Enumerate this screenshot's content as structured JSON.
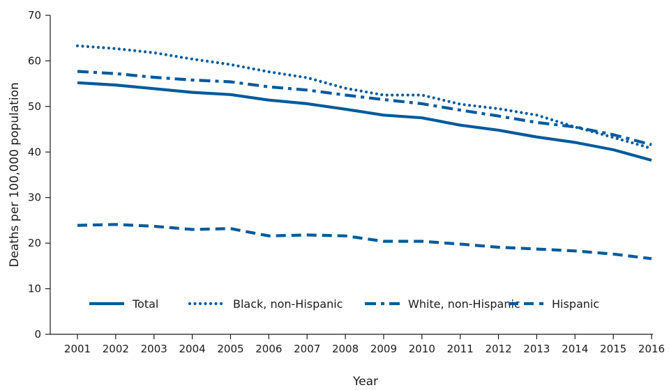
{
  "chart_data": {
    "type": "line",
    "title": "",
    "xlabel": "Year",
    "ylabel": "Deaths per 100,000 population",
    "categories": [
      "2001",
      "2002",
      "2003",
      "2004",
      "2005",
      "2006",
      "2007",
      "2008",
      "2009",
      "2010",
      "2011",
      "2012",
      "2013",
      "2014",
      "2015",
      "2016"
    ],
    "ylim": [
      0,
      70
    ],
    "yticks": [
      0,
      10,
      20,
      30,
      40,
      50,
      60,
      70
    ],
    "grid": false,
    "legend_position": "bottom-inside",
    "color": "#005a9c",
    "series": [
      {
        "name": "Total",
        "dash": "solid",
        "values": [
          55.2,
          54.7,
          53.9,
          53.1,
          52.6,
          51.4,
          50.6,
          49.4,
          48.1,
          47.5,
          45.9,
          44.8,
          43.3,
          42.1,
          40.5,
          38.2
        ]
      },
      {
        "name": "Black, non-Hispanic",
        "dash": "dotted",
        "values": [
          63.3,
          62.7,
          61.8,
          60.4,
          59.2,
          57.6,
          56.3,
          54.0,
          52.5,
          52.5,
          50.5,
          49.5,
          48.1,
          45.5,
          43.2,
          40.8
        ]
      },
      {
        "name": "White, non-Hispanic",
        "dash": "dashdot",
        "values": [
          57.7,
          57.2,
          56.4,
          55.8,
          55.4,
          54.3,
          53.6,
          52.5,
          51.5,
          50.6,
          49.2,
          47.9,
          46.5,
          45.5,
          43.8,
          41.6
        ]
      },
      {
        "name": "Hispanic",
        "dash": "dashed",
        "values": [
          23.9,
          24.1,
          23.7,
          23.0,
          23.2,
          21.6,
          21.8,
          21.6,
          20.4,
          20.4,
          19.8,
          19.1,
          18.7,
          18.3,
          17.6,
          16.6
        ]
      }
    ]
  }
}
